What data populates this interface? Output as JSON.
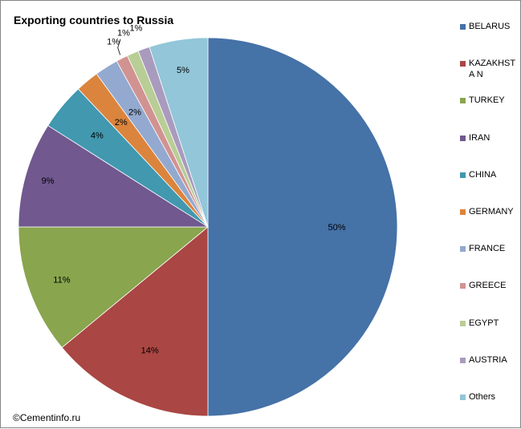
{
  "chart_data": {
    "type": "pie",
    "title": "Exporting countries to Russia",
    "categories": [
      "BELARUS",
      "KAZAKHSTAN",
      "TURKEY",
      "IRAN",
      "CHINA",
      "GERMANY",
      "FRANCE",
      "GREECE",
      "EGYPT",
      "AUSTRIA",
      "Others"
    ],
    "values": [
      50,
      14,
      11,
      9,
      4,
      2,
      2,
      1,
      1,
      1,
      5
    ],
    "data_labels": [
      "50%",
      "14%",
      "11%",
      "9%",
      "4%",
      "2%",
      "2%",
      "1%",
      "1%",
      "1%",
      "5%"
    ],
    "colors": [
      "#4572A7",
      "#AA4643",
      "#89A54E",
      "#71588F",
      "#4198AF",
      "#DB843D",
      "#93A9CF",
      "#D19392",
      "#B9CD96",
      "#A99BBD",
      "#92C6D8"
    ],
    "legend_position": "right",
    "legend_labels": [
      "BELARUS",
      "KAZAKHSTA N",
      "TURKEY",
      "IRAN",
      "CHINA",
      "GERMANY",
      "FRANCE",
      "GREECE",
      "EGYPT",
      "AUSTRIA",
      "Others"
    ]
  },
  "footer": {
    "copyright": "©Cementinfo.ru"
  }
}
